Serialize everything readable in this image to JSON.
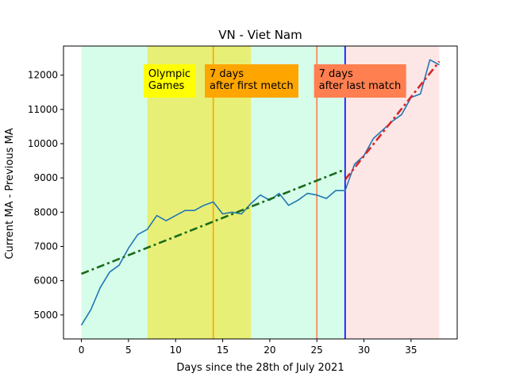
{
  "chart_data": {
    "type": "line",
    "title": "VN - Viet Nam",
    "xlabel": "Days since the 28th of July 2021",
    "ylabel": "Current MA - Previous MA",
    "xlim": [
      -1.9,
      39.9
    ],
    "ylim": [
      4300,
      12850
    ],
    "xticks": [
      0,
      5,
      10,
      15,
      20,
      25,
      30,
      35
    ],
    "yticks": [
      5000,
      6000,
      7000,
      8000,
      9000,
      10000,
      11000,
      12000
    ],
    "grid": false,
    "legend": "none",
    "series": [
      {
        "color": "#1f77b4",
        "style": "solid",
        "x": [
          0,
          1,
          2,
          3,
          4,
          5,
          6,
          7,
          8,
          9,
          10,
          11,
          12,
          13,
          14,
          15,
          16,
          17,
          18,
          19,
          20,
          21,
          22,
          23,
          24,
          25,
          26,
          27,
          28,
          29,
          30,
          31,
          32,
          33,
          34,
          35,
          36,
          37,
          38
        ],
        "y": [
          4700,
          5150,
          5800,
          6250,
          6450,
          6950,
          7350,
          7500,
          7900,
          7750,
          7900,
          8050,
          8050,
          8200,
          8300,
          7950,
          8000,
          7950,
          8250,
          8500,
          8350,
          8550,
          8200,
          8350,
          8550,
          8500,
          8400,
          8630,
          8630,
          9400,
          9650,
          10150,
          10400,
          10650,
          10850,
          11350,
          11450,
          12450,
          12300
        ]
      },
      {
        "color": "#1a6b1a",
        "style": "dashdot",
        "x": [
          0,
          28
        ],
        "y": [
          6200,
          9250
        ]
      },
      {
        "color": "#d62728",
        "style": "dashdot",
        "x": [
          28,
          38
        ],
        "y": [
          8950,
          12400
        ]
      }
    ],
    "shaded_regions": [
      {
        "x": [
          0,
          28
        ],
        "color": "#d6fdea"
      },
      {
        "x": [
          7,
          18
        ],
        "color": "#e7ef76"
      },
      {
        "x": [
          28,
          38
        ],
        "color": "#fde6e6"
      }
    ],
    "vertical_lines": [
      {
        "x": 14,
        "color": "#ffa500"
      },
      {
        "x": 25,
        "color": "#ff7f50"
      },
      {
        "x": 28,
        "color": "#0000ff"
      }
    ],
    "annotations": [
      {
        "x": 6.6,
        "lines": [
          "Olympic",
          "Games"
        ],
        "bg": "#ffff00"
      },
      {
        "x": 13.1,
        "lines": [
          "7 days",
          "after first metch"
        ],
        "bg": "#ffa500"
      },
      {
        "x": 24.7,
        "lines": [
          "7 days",
          "after last match"
        ],
        "bg": "#ff7f50"
      }
    ]
  }
}
